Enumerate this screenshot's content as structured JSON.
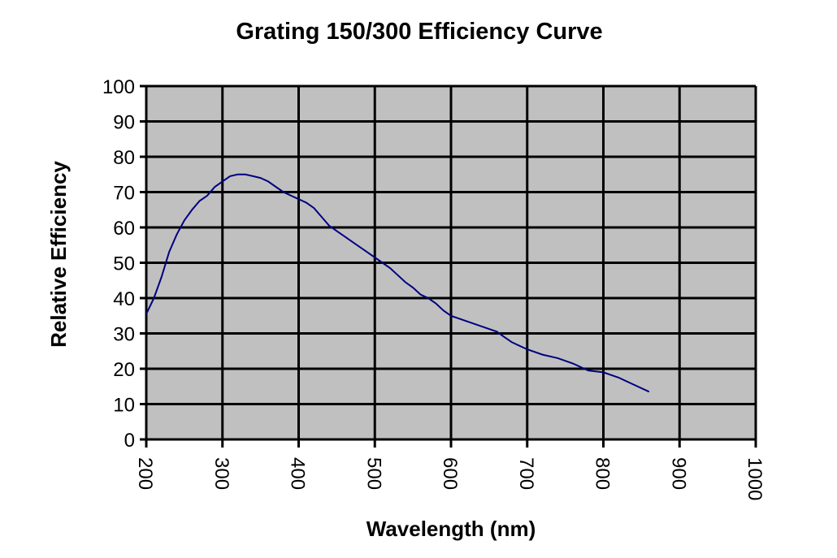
{
  "chart_data": {
    "type": "line",
    "title": "Grating 150/300 Efficiency Curve",
    "xlabel": "Wavelength (nm)",
    "ylabel": "Relative Efficiency",
    "xlim": [
      200,
      1000
    ],
    "ylim": [
      0,
      100
    ],
    "xticks": [
      200,
      300,
      400,
      500,
      600,
      700,
      800,
      900,
      1000
    ],
    "yticks": [
      0,
      10,
      20,
      30,
      40,
      50,
      60,
      70,
      80,
      90,
      100
    ],
    "grid": true,
    "plot_background": "#c0c0c0",
    "series": [
      {
        "name": "Efficiency",
        "color": "#000080",
        "x": [
          200,
          210,
          220,
          230,
          240,
          250,
          260,
          270,
          280,
          290,
          300,
          310,
          320,
          330,
          340,
          350,
          360,
          370,
          380,
          390,
          400,
          410,
          420,
          430,
          440,
          450,
          460,
          470,
          480,
          490,
          500,
          510,
          520,
          530,
          540,
          550,
          560,
          570,
          580,
          590,
          600,
          620,
          640,
          660,
          670,
          680,
          700,
          720,
          740,
          760,
          780,
          800,
          820,
          840,
          860
        ],
        "y": [
          35.5,
          40,
          46,
          53,
          58,
          62,
          65,
          67.5,
          69,
          71.5,
          73,
          74.5,
          75,
          75,
          74.5,
          74,
          73,
          71.5,
          70,
          69,
          68,
          67,
          65.5,
          63,
          60.5,
          59,
          57.5,
          56,
          54.5,
          53,
          51.5,
          50,
          48.5,
          46.5,
          44.5,
          43,
          41,
          40,
          38.5,
          36.5,
          35,
          33.5,
          32,
          30.5,
          29,
          27.5,
          25.5,
          24,
          23,
          21.5,
          19.5,
          19,
          17.5,
          15.5,
          13.5
        ]
      }
    ]
  }
}
